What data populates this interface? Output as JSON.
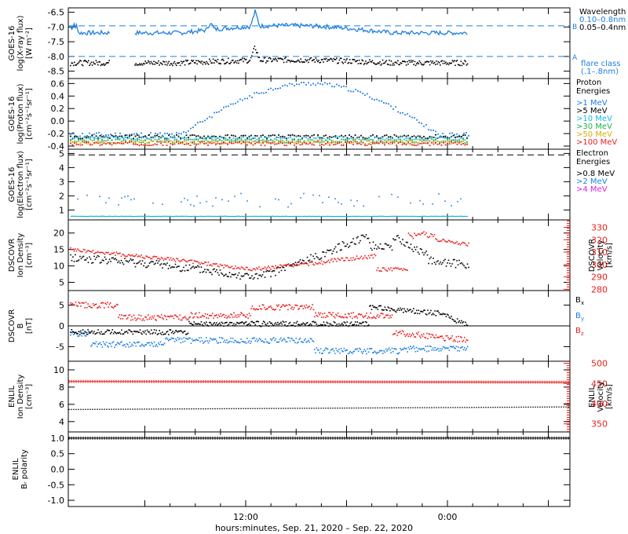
{
  "footer": {
    "xlabel": "hours:minutes, Sep. 21, 2020 – Sep. 22, 2020"
  },
  "x_axis": {
    "ticks": [
      "12:00",
      "0:00"
    ]
  },
  "colors": {
    "black": "#000000",
    "blue": "#1e7fe0",
    "cyan": "#15b8e0",
    "green": "#22b050",
    "yellow": "#d0b000",
    "orange": "#ff8000",
    "red": "#e8201e",
    "magenta": "#e020e0"
  },
  "chart_data": [
    {
      "type": "line",
      "panel": "xray",
      "ylabel": [
        "GOES-16",
        "log(X-ray flux)",
        "[W m⁻²]"
      ],
      "ylim": [
        -8.75,
        -6.35
      ],
      "yticks": [
        -6.5,
        -7.0,
        -7.5,
        -8.0,
        -8.5
      ],
      "legend_title": "Wavelength",
      "series": [
        {
          "name": "0.10–0.8nm",
          "color": "#1e7fe0",
          "base": -7.2
        },
        {
          "name": "0.05–0.4nm",
          "color": "#000000",
          "base": -8.2
        }
      ],
      "reference_lines": [
        {
          "level": -6.96,
          "label": "B"
        },
        {
          "level": -8.0,
          "label": "A"
        }
      ],
      "annotation": [
        "flare class",
        "(.1–.8nm)"
      ]
    },
    {
      "type": "scatter",
      "panel": "proton",
      "ylabel": [
        "GOES-16",
        "log(Proton flux)",
        "[cm⁻²s⁻¹sr⁻¹]"
      ],
      "ylim": [
        -0.45,
        0.68
      ],
      "yticks": [
        0.6,
        0.4,
        0.2,
        0.0,
        -0.2,
        -0.4
      ],
      "legend_title": [
        "Proton",
        "Energies"
      ],
      "series": [
        {
          "name": ">1 MeV",
          "color": "#1e7fe0"
        },
        {
          "name": ">5 MeV",
          "color": "#000000"
        },
        {
          "name": ">10 MeV",
          "color": "#15b8e0"
        },
        {
          "name": ">30 MeV",
          "color": "#22b050"
        },
        {
          "name": ">50 MeV",
          "color": "#d0b000"
        },
        {
          "name": ">100 MeV",
          "color": "#e8201e"
        }
      ]
    },
    {
      "type": "scatter",
      "panel": "electron",
      "ylabel": [
        "GOES-16",
        "log(Electron flux)",
        "[cm⁻²s⁻¹sr⁻¹]"
      ],
      "ylim": [
        0.3,
        5.3
      ],
      "yticks": [
        5,
        4,
        3,
        2,
        1
      ],
      "legend_title": [
        "Electron",
        "Energies"
      ],
      "series": [
        {
          "name": ">0.8 MeV",
          "color": "#000000"
        },
        {
          "name": ">2 MeV",
          "color": "#1e7fe0"
        },
        {
          "name": ">4 MeV",
          "color": "#e020e0"
        }
      ],
      "reference_lines": [
        {
          "level": 4.9
        }
      ]
    },
    {
      "type": "line",
      "panel": "dscovr-plasma",
      "ylabel": [
        "DSCOVR",
        "Ion Density",
        "[cm⁻³]"
      ],
      "ylim": [
        2.5,
        24
      ],
      "yticks": [
        20,
        15,
        10,
        5
      ],
      "right_ylabel": [
        "DSCOVR",
        "Velocity",
        "[km/s]"
      ],
      "right_ylim": [
        279,
        336
      ],
      "right_yticks": [
        330,
        320,
        310,
        300,
        290,
        280
      ],
      "series": [
        {
          "name": "Density",
          "color": "#000000"
        },
        {
          "name": "Velocity",
          "color": "#e8201e"
        }
      ]
    },
    {
      "type": "line",
      "panel": "dscovr-mag",
      "ylabel": [
        "DSCOVR",
        "B",
        "[nT]"
      ],
      "ylim": [
        -8.5,
        8.5
      ],
      "yticks": [
        5,
        0,
        -5
      ],
      "series": [
        {
          "name": "Bx",
          "color": "#000000"
        },
        {
          "name": "By",
          "color": "#1e7fe0"
        },
        {
          "name": "Bz",
          "color": "#e8201e"
        }
      ]
    },
    {
      "type": "line",
      "panel": "enlil-plasma",
      "ylabel": [
        "ENLIL",
        "Ion Density",
        "[cm⁻³]"
      ],
      "ylim": [
        2.8,
        11
      ],
      "yticks": [
        10,
        8,
        6,
        4
      ],
      "right_ylabel": [
        "ENLIL",
        "Velocity",
        "[km/s]"
      ],
      "right_ylim": [
        330,
        505
      ],
      "right_yticks": [
        500,
        450,
        400,
        350
      ],
      "series": [
        {
          "name": "Density",
          "color": "#000000",
          "value": 5.4
        },
        {
          "name": "Velocity",
          "color": "#e8201e",
          "value": 455
        }
      ]
    },
    {
      "type": "line",
      "panel": "enlil-polarity",
      "ylabel": [
        "ENLIL",
        "Bᵣ polarity"
      ],
      "ylim": [
        -1.2,
        1.2
      ],
      "yticks": [
        1.0,
        0.5,
        0.0,
        -0.5,
        -1.0
      ],
      "series": [
        {
          "name": "Polarity",
          "color": "#000000",
          "value": 1.0
        }
      ]
    }
  ]
}
